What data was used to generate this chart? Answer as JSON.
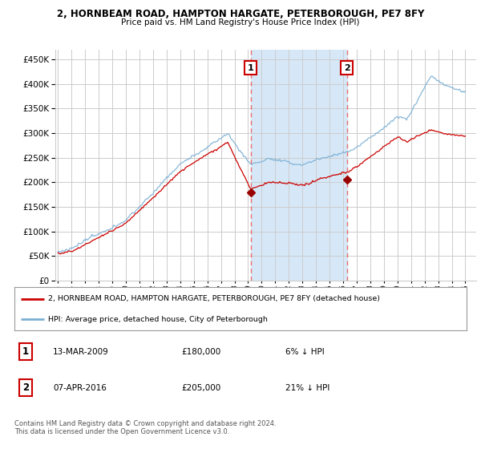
{
  "title1": "2, HORNBEAM ROAD, HAMPTON HARGATE, PETERBOROUGH, PE7 8FY",
  "title2": "Price paid vs. HM Land Registry's House Price Index (HPI)",
  "ylabel_values": [
    0,
    50000,
    100000,
    150000,
    200000,
    250000,
    300000,
    350000,
    400000,
    450000
  ],
  "ylim": [
    0,
    470000
  ],
  "xlim_start": 1994.8,
  "xlim_end": 2025.8,
  "background_color": "#ffffff",
  "plot_bg_color": "#ffffff",
  "grid_color": "#cccccc",
  "hpi_line_color": "#7bafd4",
  "price_line_color": "#cc0000",
  "sale1_x": 2009.19,
  "sale1_y": 180000,
  "sale1_label": "1",
  "sale2_x": 2016.27,
  "sale2_y": 205000,
  "sale2_label": "2",
  "vline_color": "#e87070",
  "sale_marker_color": "#990000",
  "legend_line1": "2, HORNBEAM ROAD, HAMPTON HARGATE, PETERBOROUGH, PE7 8FY (detached house)",
  "legend_line2": "HPI: Average price, detached house, City of Peterborough",
  "table_row1": [
    "1",
    "13-MAR-2009",
    "£180,000",
    "6% ↓ HPI"
  ],
  "table_row2": [
    "2",
    "07-APR-2016",
    "£205,000",
    "21% ↓ HPI"
  ],
  "footnote": "Contains HM Land Registry data © Crown copyright and database right 2024.\nThis data is licensed under the Open Government Licence v3.0.",
  "highlight_color": "#d6e8f7"
}
